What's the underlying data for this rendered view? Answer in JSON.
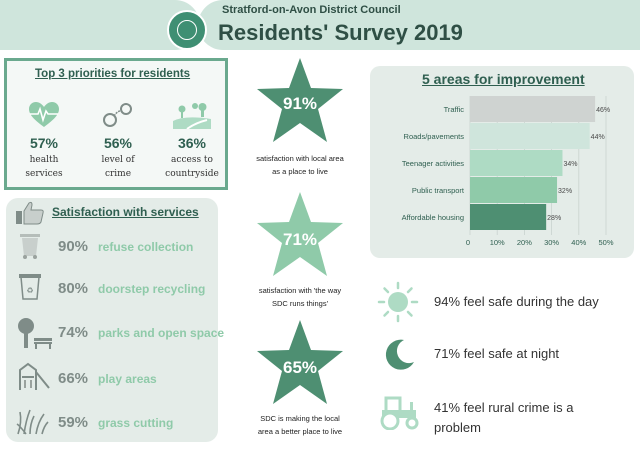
{
  "header": {
    "council": "Stratford-on-Avon District Council",
    "title": "Residents' Survey 2019",
    "crest_icon": "council-crest-icon"
  },
  "priorities": {
    "title": "Top 3 priorities for residents",
    "items": [
      {
        "pct": "57%",
        "line1": "health",
        "line2": "services",
        "icon": "heart-pulse-icon"
      },
      {
        "pct": "56%",
        "line1": "level of",
        "line2": "crime",
        "icon": "handcuffs-icon"
      },
      {
        "pct": "36%",
        "line1": "access to",
        "line2": "countryside",
        "icon": "countryside-icon"
      }
    ]
  },
  "satisfaction": {
    "title": "Satisfaction with services",
    "items": [
      {
        "pct": "90%",
        "label": "refuse collection",
        "icon": "wheelie-bin-icon"
      },
      {
        "pct": "80%",
        "label": "doorstep recycling",
        "icon": "recycling-bin-icon"
      },
      {
        "pct": "74%",
        "label": "parks and open space",
        "icon": "park-bench-icon"
      },
      {
        "pct": "66%",
        "label": "play areas",
        "icon": "playground-icon"
      },
      {
        "pct": "59%",
        "label": "grass cutting",
        "icon": "grass-icon"
      }
    ]
  },
  "stars": [
    {
      "pct": "91%",
      "line1": "satisfaction with local area",
      "line2": "as a place to live",
      "color": "#4e8f72"
    },
    {
      "pct": "71%",
      "line1": "satisfaction with 'the way",
      "line2": "SDC runs things'",
      "color": "#8fcaa9"
    },
    {
      "pct": "65%",
      "line1": "SDC is making the local",
      "line2": "area a better place to live",
      "color": "#4e8f72"
    }
  ],
  "safety": [
    {
      "text": "94% feel safe during the day",
      "icon": "sun-icon"
    },
    {
      "text": "71% feel safe at night",
      "icon": "moon-icon"
    },
    {
      "line1": "41% feel rural crime is a",
      "line2": "problem",
      "icon": "tractor-icon"
    }
  ],
  "chart_data": {
    "type": "bar",
    "orientation": "horizontal",
    "title": "5 areas for improvement",
    "categories": [
      "Traffic",
      "Roads/pavements",
      "Teenager activities",
      "Public transport",
      "Affordable housing"
    ],
    "values": [
      46,
      44,
      34,
      32,
      28
    ],
    "value_labels": [
      "46%",
      "44%",
      "34%",
      "32%",
      "28%"
    ],
    "colors": [
      "#cfd3d1",
      "#cfe5dc",
      "#aedbc4",
      "#8fcaa9",
      "#4e8f72"
    ],
    "xlim": [
      0,
      50
    ],
    "xticks": [
      0,
      10,
      20,
      30,
      40,
      50
    ],
    "xtick_labels": [
      "0",
      "10%",
      "20%",
      "30%",
      "40%",
      "50%"
    ],
    "grid": true
  }
}
